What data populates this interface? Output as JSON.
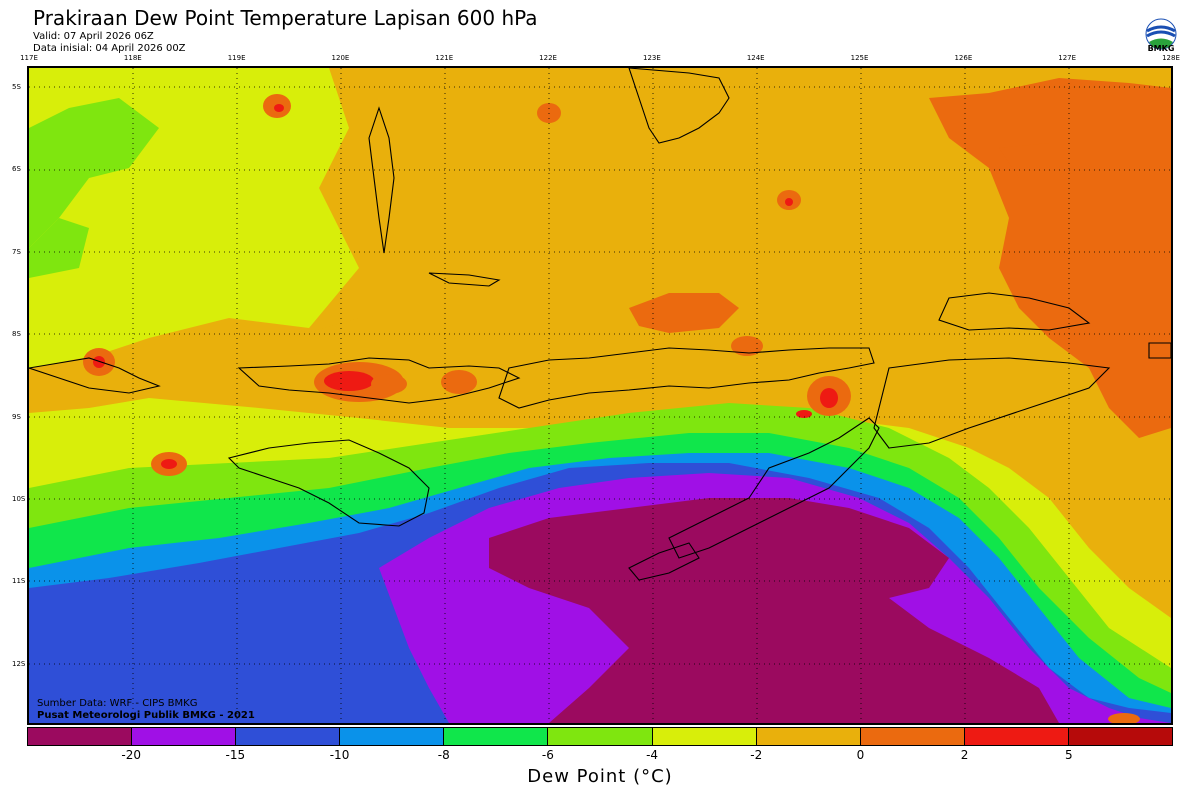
{
  "header": {
    "title": "Prakiraan Dew Point Temperature Lapisan 600 hPa",
    "valid": "Valid: 07 April 2026 06Z",
    "init": "Data inisial: 04 April 2026 00Z"
  },
  "logo": {
    "text": "BMKG",
    "icon": "bmkg-logo-icon"
  },
  "map": {
    "lon_labels": [
      "117E",
      "118E",
      "119E",
      "120E",
      "121E",
      "122E",
      "123E",
      "124E",
      "125E",
      "126E",
      "127E",
      "128E"
    ],
    "lat_labels": [
      "5S",
      "6S",
      "7S",
      "8S",
      "9S",
      "10S",
      "11S",
      "12S"
    ],
    "credits": [
      "Sumber Data: WRF - CIPS BMKG",
      "Pusat Meteorologi Publik BMKG - 2021"
    ]
  },
  "colorbar": {
    "colors": [
      "#9b0a5f",
      "#a010e6",
      "#2f4fd7",
      "#0a92ea",
      "#10e64b",
      "#7fe60f",
      "#d8ee0a",
      "#e9b00c",
      "#eb6a0f",
      "#ee1a13",
      "#b60a0a"
    ],
    "ticks": [
      "-20",
      "-15",
      "-10",
      "-8",
      "-6",
      "-4",
      "-2",
      "0",
      "2",
      "5"
    ],
    "label": "Dew Point (°C)"
  }
}
